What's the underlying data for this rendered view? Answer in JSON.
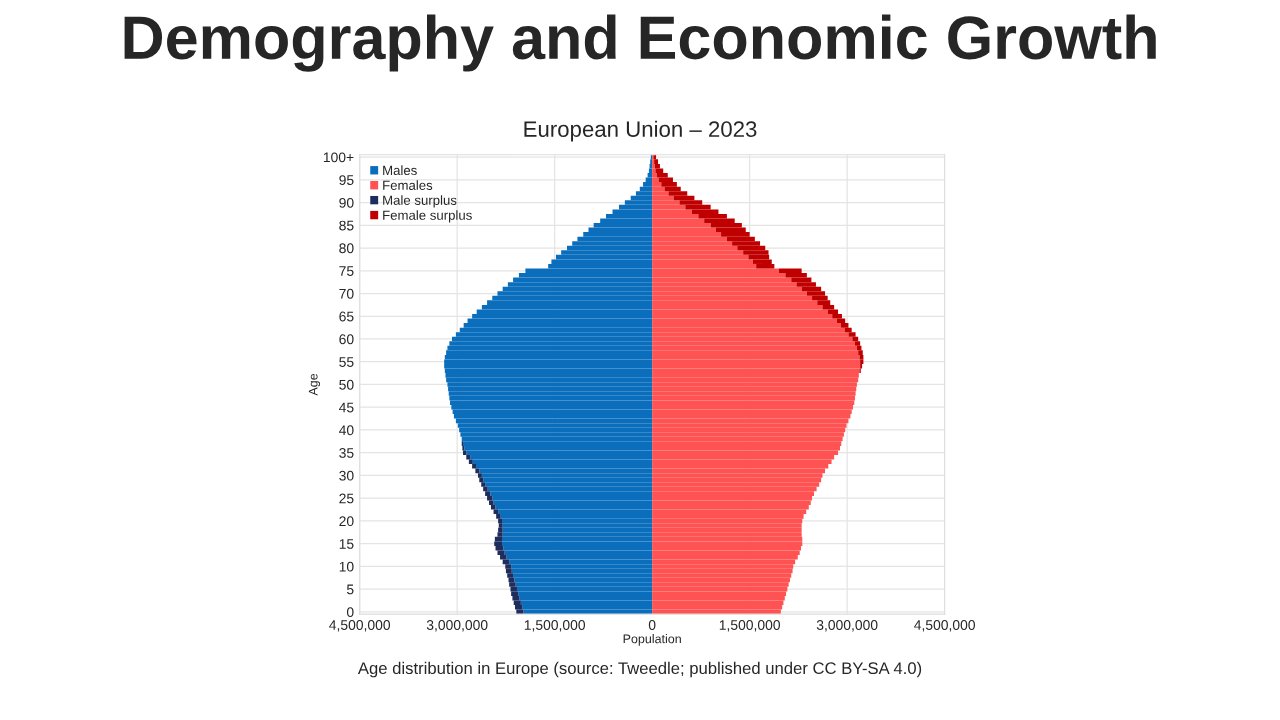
{
  "chart_data": {
    "type": "bar",
    "orientation": "horizontal",
    "stacked": true,
    "title": "Demography and Economic Growth",
    "subtitle": "European Union – 2023",
    "xlabel": "Population",
    "ylabel": "Age",
    "annotations": [
      "Age distribution in Europe (source: Tweedle; published under CC BY-SA 4.0)"
    ],
    "categories": [
      "100+",
      null,
      null,
      null,
      null,
      "95",
      null,
      null,
      null,
      null,
      "90",
      null,
      null,
      null,
      null,
      "85",
      null,
      null,
      null,
      null,
      "80",
      null,
      null,
      null,
      null,
      "75",
      null,
      null,
      null,
      null,
      "70",
      null,
      null,
      null,
      null,
      "65",
      null,
      null,
      null,
      null,
      "60",
      null,
      null,
      null,
      null,
      "55",
      null,
      null,
      null,
      null,
      "50",
      null,
      null,
      null,
      null,
      "45",
      null,
      null,
      null,
      null,
      "40",
      null,
      null,
      null,
      null,
      "35",
      null,
      null,
      null,
      null,
      "30",
      null,
      null,
      null,
      null,
      "25",
      null,
      null,
      null,
      null,
      "20",
      null,
      null,
      null,
      null,
      "15",
      null,
      null,
      null,
      null,
      "10",
      null,
      null,
      null,
      null,
      "5",
      null,
      null,
      null,
      null,
      "0"
    ],
    "series": [
      {
        "name": "Males",
        "color": "#0a6ebd",
        "values": [
          -20000,
          -30000,
          -40000,
          -50000,
          -70000,
          -100000,
          -140000,
          -190000,
          -250000,
          -330000,
          -420000,
          -510000,
          -610000,
          -710000,
          -800000,
          -900000,
          -980000,
          -1060000,
          -1150000,
          -1230000,
          -1310000,
          -1400000,
          -1480000,
          -1550000,
          -1600000,
          -1950000,
          -2050000,
          -2140000,
          -2220000,
          -2300000,
          -2380000,
          -2460000,
          -2540000,
          -2620000,
          -2700000,
          -2770000,
          -2840000,
          -2900000,
          -2960000,
          -3020000,
          -3080000,
          -3120000,
          -3150000,
          -3170000,
          -3190000,
          -3200000,
          -3200000,
          -3190000,
          -3180000,
          -3170000,
          -3150000,
          -3140000,
          -3130000,
          -3120000,
          -3110000,
          -3090000,
          -3070000,
          -3050000,
          -3020000,
          -2990000,
          -2970000,
          -2950000,
          -2930000,
          -2910000,
          -2890000,
          -2860000,
          -2800000,
          -2760000,
          -2710000,
          -2660000,
          -2620000,
          -2600000,
          -2570000,
          -2530000,
          -2490000,
          -2460000,
          -2440000,
          -2410000,
          -2370000,
          -2330000,
          -2310000,
          -2300000,
          -2300000,
          -2300000,
          -2310000,
          -2310000,
          -2290000,
          -2270000,
          -2240000,
          -2200000,
          -2170000,
          -2160000,
          -2140000,
          -2120000,
          -2100000,
          -2080000,
          -2060000,
          -2040000,
          -2020000,
          -2000000,
          -1980000
        ]
      },
      {
        "name": "Females",
        "color": "#ff5252",
        "values": [
          20000,
          30000,
          40000,
          50000,
          70000,
          100000,
          140000,
          190000,
          250000,
          330000,
          420000,
          510000,
          610000,
          710000,
          800000,
          900000,
          980000,
          1060000,
          1150000,
          1230000,
          1310000,
          1400000,
          1480000,
          1550000,
          1600000,
          1950000,
          2050000,
          2140000,
          2220000,
          2300000,
          2380000,
          2460000,
          2540000,
          2620000,
          2700000,
          2770000,
          2840000,
          2900000,
          2960000,
          3020000,
          3080000,
          3120000,
          3150000,
          3170000,
          3190000,
          3200000,
          3200000,
          3190000,
          3180000,
          3170000,
          3150000,
          3140000,
          3130000,
          3120000,
          3110000,
          3090000,
          3070000,
          3050000,
          3020000,
          2990000,
          2970000,
          2950000,
          2930000,
          2910000,
          2890000,
          2860000,
          2800000,
          2760000,
          2710000,
          2660000,
          2620000,
          2600000,
          2570000,
          2530000,
          2490000,
          2460000,
          2440000,
          2410000,
          2370000,
          2330000,
          2310000,
          2300000,
          2300000,
          2300000,
          2310000,
          2310000,
          2290000,
          2270000,
          2240000,
          2200000,
          2170000,
          2160000,
          2140000,
          2120000,
          2100000,
          2080000,
          2060000,
          2040000,
          2020000,
          2000000,
          1980000
        ]
      },
      {
        "name": "Male surplus",
        "color": "#1f2d5c",
        "values": [
          null,
          null,
          null,
          null,
          null,
          null,
          null,
          null,
          null,
          null,
          null,
          null,
          null,
          null,
          null,
          null,
          null,
          null,
          null,
          null,
          null,
          null,
          null,
          null,
          null,
          null,
          null,
          null,
          null,
          null,
          null,
          null,
          null,
          null,
          null,
          null,
          null,
          null,
          null,
          null,
          null,
          null,
          null,
          null,
          null,
          null,
          null,
          null,
          null,
          null,
          null,
          null,
          null,
          null,
          null,
          null,
          null,
          null,
          null,
          null,
          null,
          null,
          null,
          -20000,
          -30000,
          -50000,
          -60000,
          -60000,
          -60000,
          -60000,
          -60000,
          -60000,
          -60000,
          -70000,
          -80000,
          -80000,
          -70000,
          -70000,
          -70000,
          -70000,
          -60000,
          -60000,
          -70000,
          -80000,
          -110000,
          -120000,
          -120000,
          -110000,
          -100000,
          -100000,
          -90000,
          -90000,
          -90000,
          -90000,
          -100000,
          -100000,
          -110000,
          -110000,
          -110000,
          -110000,
          -110000
        ]
      },
      {
        "name": "Female surplus",
        "color": "#c00000",
        "values": [
          40000,
          60000,
          80000,
          120000,
          170000,
          220000,
          240000,
          250000,
          290000,
          320000,
          350000,
          390000,
          410000,
          440000,
          470000,
          480000,
          460000,
          440000,
          430000,
          430000,
          430000,
          390000,
          320000,
          290000,
          280000,
          350000,
          330000,
          310000,
          300000,
          300000,
          280000,
          240000,
          200000,
          180000,
          160000,
          150000,
          130000,
          120000,
          110000,
          110000,
          90000,
          80000,
          70000,
          70000,
          60000,
          50000,
          30000,
          20000,
          null,
          null,
          null,
          null,
          null,
          null,
          null,
          null,
          null,
          null,
          null,
          null,
          null,
          null,
          null,
          null,
          null,
          null,
          null,
          null,
          null,
          null,
          null,
          null,
          null,
          null,
          null,
          null,
          null,
          null,
          null,
          null,
          null,
          null,
          null,
          null,
          null,
          null,
          null,
          null,
          null,
          null,
          null,
          null,
          null,
          null,
          null,
          null,
          null,
          null,
          null,
          null,
          null
        ]
      }
    ],
    "xlim": [
      -4500000,
      4500000
    ],
    "xticks": [
      {
        "value": -4500000,
        "label": "4,500,000"
      },
      {
        "value": -3000000,
        "label": "3,000,000"
      },
      {
        "value": -1500000,
        "label": "1,500,000"
      },
      0,
      {
        "value": 1500000,
        "label": "1,500,000"
      },
      {
        "value": 3000000,
        "label": "3,000,000"
      },
      {
        "value": 4500000,
        "label": "4,500,000"
      }
    ],
    "grid": true,
    "legend": "top left"
  }
}
